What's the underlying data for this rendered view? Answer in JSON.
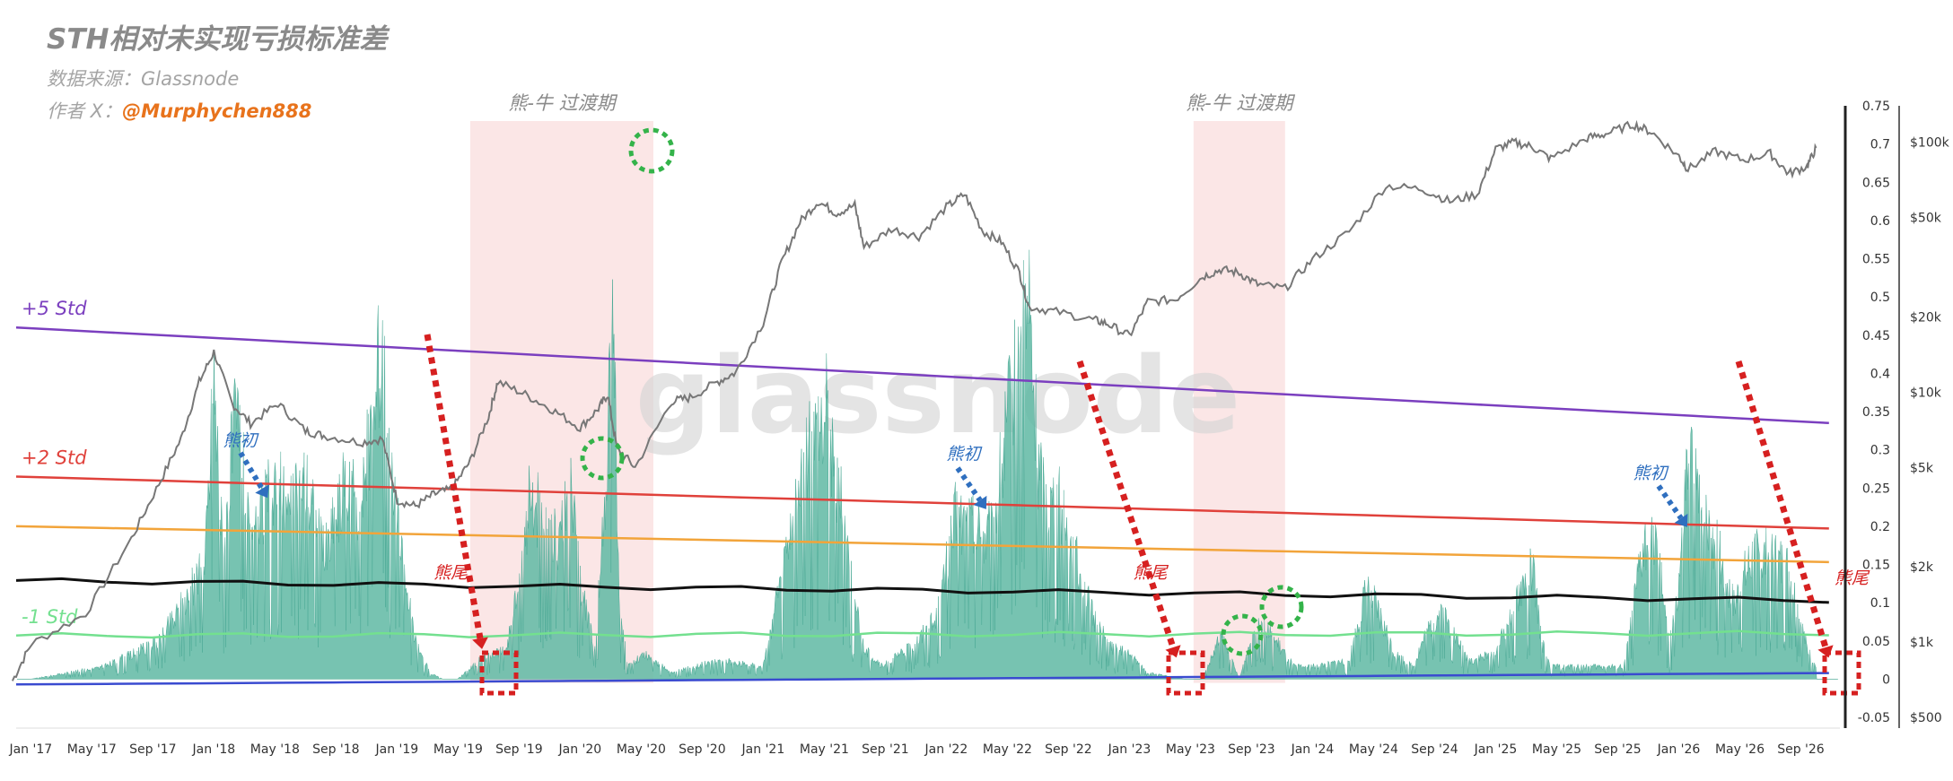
{
  "header": {
    "title": "STH相对未实现亏损标准差",
    "source": "数据来源：Glassnode",
    "author_prefix": "作者 X：",
    "author_handle": "@Murphychen888"
  },
  "watermark": "glassnode",
  "chart_data": {
    "type": "area",
    "x_ticks": [
      "Jan '17",
      "May '17",
      "Sep '17",
      "Jan '18",
      "May '18",
      "Sep '18",
      "Jan '19",
      "May '19",
      "Sep '19",
      "Jan '20",
      "May '20",
      "Sep '20",
      "Jan '21",
      "May '21",
      "Sep '21",
      "Jan '22",
      "May '22",
      "Sep '22",
      "Jan '23",
      "May '23",
      "Sep '23",
      "Jan '24",
      "May '24",
      "Sep '24",
      "Jan '25",
      "May '25",
      "Sep '25",
      "Jan '26",
      "May '26",
      "Sep '26"
    ],
    "y_left": {
      "ticks": [
        0.75,
        0.7,
        0.65,
        0.6,
        0.55,
        0.5,
        0.45,
        0.4,
        0.35,
        0.3,
        0.25,
        0.2,
        0.15,
        0.1,
        0.05,
        0,
        -0.05
      ],
      "range": [
        -0.05,
        0.75
      ]
    },
    "y_right": {
      "ticks": [
        "$100k",
        "$50k",
        "$20k",
        "$10k",
        "$5k",
        "$2k",
        "$1k",
        "$500"
      ],
      "values": [
        100000,
        50000,
        20000,
        10000,
        5000,
        2000,
        1000,
        500
      ],
      "scale": "log",
      "range": [
        500,
        140000
      ]
    },
    "bands": [
      {
        "label": "+5 Std",
        "color": "#7b3fbf",
        "start": 0.46,
        "end": 0.335
      },
      {
        "label": "+2 Std",
        "color": "#e0413b",
        "start": 0.265,
        "end": 0.197
      },
      {
        "label": "",
        "color": "#f2a43a",
        "start": 0.2,
        "end": 0.153
      },
      {
        "label": "",
        "color": "#111111",
        "start": 0.129,
        "end": 0.103
      },
      {
        "label": "-1 Std",
        "color": "#73e08f",
        "start": 0.057,
        "end": 0.06
      },
      {
        "label": "",
        "color": "#3a4bd0",
        "start": -0.007,
        "end": 0.008
      }
    ],
    "shaded_periods": [
      {
        "label": "熊-牛 过渡期",
        "start": 2019.4,
        "end": 2020.4
      },
      {
        "label": "熊-牛 过渡期",
        "start": 2023.35,
        "end": 2023.85
      }
    ],
    "indicator_series": {
      "name": "",
      "color": "#5fb8a3",
      "x": [
        2017.0,
        2017.4,
        2017.7,
        2017.95,
        2018.0,
        2018.05,
        2018.1,
        2018.13,
        2018.2,
        2018.3,
        2018.37,
        2018.42,
        2018.5,
        2018.6,
        2018.7,
        2018.8,
        2018.88,
        2018.92,
        2018.96,
        2019.0,
        2019.05,
        2019.1,
        2019.18,
        2019.25,
        2019.33,
        2019.45,
        2019.6,
        2019.68,
        2019.72,
        2019.78,
        2019.83,
        2019.88,
        2019.95,
        2020.0,
        2020.08,
        2020.13,
        2020.18,
        2020.21,
        2020.23,
        2020.26,
        2020.35,
        2020.5,
        2020.75,
        2021.0,
        2021.2,
        2021.3,
        2021.35,
        2021.38,
        2021.45,
        2021.5,
        2021.55,
        2021.65,
        2021.8,
        2021.95,
        2022.05,
        2022.15,
        2022.25,
        2022.35,
        2022.4,
        2022.45,
        2022.5,
        2022.55,
        2022.6,
        2022.7,
        2022.8,
        2022.9,
        2023.0,
        2023.1,
        2023.3,
        2023.4,
        2023.5,
        2023.6,
        2023.7,
        2023.8,
        2023.9,
        2024.0,
        2024.2,
        2024.3,
        2024.45,
        2024.55,
        2024.6,
        2024.7,
        2024.85,
        2025.0,
        2025.1,
        2025.2,
        2025.25,
        2025.3,
        2025.5,
        2025.7,
        2025.8,
        2025.85,
        2025.9,
        2025.95,
        2026.0,
        2026.05,
        2026.1,
        2026.15,
        2026.2,
        2026.3,
        2026.4,
        2026.5,
        2026.6,
        2026.7,
        2026.75
      ],
      "y": [
        0.0,
        0.02,
        0.06,
        0.18,
        0.5,
        0.2,
        0.38,
        0.43,
        0.2,
        0.3,
        0.3,
        0.27,
        0.33,
        0.2,
        0.3,
        0.28,
        0.45,
        0.55,
        0.35,
        0.25,
        0.15,
        0.06,
        0.01,
        0.0,
        0.0,
        0.03,
        0.05,
        0.17,
        0.28,
        0.27,
        0.23,
        0.22,
        0.3,
        0.15,
        0.05,
        0.25,
        0.62,
        0.15,
        0.08,
        0.02,
        0.04,
        0.01,
        0.03,
        0.02,
        0.3,
        0.43,
        0.45,
        0.35,
        0.25,
        0.12,
        0.05,
        0.02,
        0.05,
        0.1,
        0.26,
        0.25,
        0.23,
        0.45,
        0.5,
        0.62,
        0.35,
        0.28,
        0.3,
        0.2,
        0.1,
        0.05,
        0.04,
        0.01,
        0.0,
        0.0,
        0.07,
        0.0,
        0.1,
        0.06,
        0.02,
        0.02,
        0.03,
        0.15,
        0.04,
        0.02,
        0.06,
        0.11,
        0.03,
        0.04,
        0.12,
        0.18,
        0.06,
        0.02,
        0.02,
        0.02,
        0.2,
        0.23,
        0.18,
        0.05,
        0.15,
        0.35,
        0.3,
        0.25,
        0.22,
        0.12,
        0.2,
        0.2,
        0.18,
        0.05,
        0.02
      ]
    },
    "price_series": {
      "name": "",
      "color": "#777777",
      "x": [
        2016.9,
        2017.0,
        2017.3,
        2017.55,
        2017.7,
        2017.82,
        2017.92,
        2018.0,
        2018.1,
        2018.2,
        2018.35,
        2018.5,
        2018.6,
        2018.8,
        2018.92,
        2019.0,
        2019.1,
        2019.2,
        2019.3,
        2019.4,
        2019.5,
        2019.55,
        2019.7,
        2019.85,
        2020.0,
        2020.1,
        2020.15,
        2020.2,
        2020.3,
        2020.5,
        2020.6,
        2020.75,
        2020.85,
        2021.0,
        2021.1,
        2021.2,
        2021.3,
        2021.4,
        2021.5,
        2021.55,
        2021.7,
        2021.85,
        2022.0,
        2022.1,
        2022.2,
        2022.3,
        2022.4,
        2022.45,
        2022.6,
        2022.8,
        2022.88,
        2023.0,
        2023.1,
        2023.25,
        2023.4,
        2023.5,
        2023.6,
        2023.7,
        2023.85,
        2024.0,
        2024.2,
        2024.4,
        2024.6,
        2024.75,
        2024.9,
        2025.0,
        2025.1,
        2025.2,
        2025.3,
        2025.5,
        2025.6,
        2025.75,
        2025.85,
        2026.0,
        2026.05,
        2026.2,
        2026.35,
        2026.5,
        2026.6,
        2026.7,
        2026.75
      ],
      "y": [
        700,
        980,
        1300,
        2600,
        4300,
        6500,
        11000,
        14500,
        9000,
        7500,
        9000,
        7000,
        6700,
        6300,
        6500,
        3700,
        3500,
        3900,
        4100,
        5300,
        8000,
        11000,
        9800,
        8500,
        7200,
        8600,
        9800,
        6000,
        5000,
        9200,
        9500,
        11000,
        12000,
        19000,
        33000,
        48000,
        58000,
        52000,
        56000,
        38000,
        45000,
        42000,
        55000,
        62000,
        44000,
        40000,
        30000,
        22000,
        21000,
        19500,
        18800,
        16800,
        23000,
        23500,
        29000,
        31000,
        30000,
        27000,
        26000,
        34000,
        44000,
        67000,
        65000,
        58000,
        62000,
        94000,
        100000,
        96000,
        86000,
        104000,
        108000,
        118000,
        110000,
        88000,
        78000,
        92000,
        85000,
        90000,
        75000,
        80000,
        95000
      ]
    },
    "annotations": [
      {
        "text": "熊初",
        "color": "#2f6fbf",
        "x": 2018.05,
        "y": 0.305
      },
      {
        "text": "熊初",
        "color": "#2f6fbf",
        "x": 2022.0,
        "y": 0.287
      },
      {
        "text": "熊初",
        "color": "#2f6fbf",
        "x": 2025.75,
        "y": 0.262
      },
      {
        "text": "熊尾",
        "color": "#d62020",
        "x": 2019.2,
        "y": 0.132
      },
      {
        "text": "熊尾",
        "color": "#d62020",
        "x": 2023.02,
        "y": 0.132
      },
      {
        "text": "熊尾",
        "color": "#d62020",
        "x": 2026.85,
        "y": 0.125
      }
    ]
  }
}
